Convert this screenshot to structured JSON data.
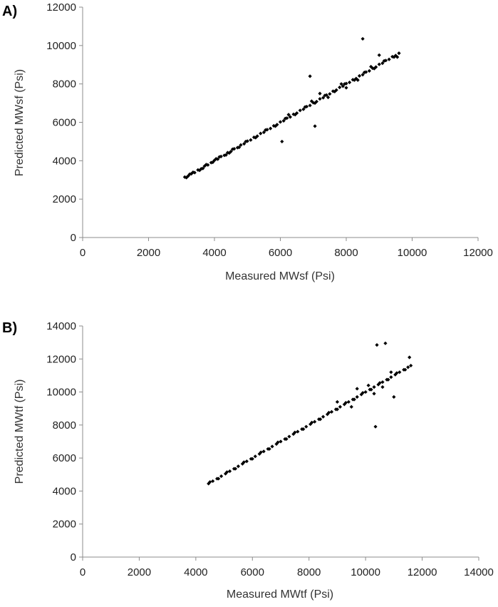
{
  "chart_data": [
    {
      "type": "scatter",
      "panel_label": "A)",
      "title": "",
      "xlabel": "Measured MWsf (Psi)",
      "ylabel": "Predicted MWsf (Psi)",
      "xlim": [
        0,
        12000
      ],
      "ylim": [
        0,
        12000
      ],
      "x_ticks": [
        0,
        2000,
        4000,
        6000,
        8000,
        10000,
        12000
      ],
      "y_ticks": [
        0,
        2000,
        4000,
        6000,
        8000,
        10000,
        12000
      ],
      "x_tick_labels": [
        "0",
        "2000",
        "4000",
        "6000",
        "8000",
        "10000",
        "12000"
      ],
      "y_tick_labels": [
        "0",
        "2000",
        "4000",
        "6000",
        "8000",
        "10000",
        "12000"
      ],
      "grid": false,
      "legend": "none",
      "marker_color": "#000000",
      "series": [
        {
          "x": [
            3100,
            3200,
            3300,
            3400,
            3500,
            3600,
            3700,
            3800,
            3900,
            4000,
            4100,
            4200,
            4300,
            4400,
            4500,
            4600,
            4700,
            4800,
            4900,
            5000,
            5100,
            5200,
            5300,
            5400,
            5500,
            5600,
            5700,
            5800,
            5900,
            6000,
            6100,
            6200,
            6300,
            6400,
            6500,
            6600,
            6700,
            6800,
            6900,
            7000,
            7100,
            7200,
            7300,
            7400,
            7500,
            7600,
            7700,
            7800,
            7900,
            8000,
            8100,
            8200,
            8300,
            8400,
            8500,
            8600,
            8700,
            8800,
            8900,
            9000,
            9100,
            9200,
            9300,
            9400,
            9500,
            9600,
            3150,
            3350,
            3550,
            3750,
            3950,
            4150,
            4350,
            4550,
            4750,
            4950,
            5250,
            5550,
            5850,
            6150,
            6450,
            6750,
            7050,
            7350,
            7650,
            7950,
            8250,
            8550,
            8850,
            9150,
            9450,
            6900,
            7050,
            6050,
            8500,
            7200,
            8000,
            9000,
            9550,
            3250,
            3650,
            4050,
            4450,
            6250,
            6950,
            7450,
            7850,
            8350,
            8750
          ],
          "y": [
            3150,
            3200,
            3320,
            3380,
            3520,
            3580,
            3720,
            3780,
            3900,
            4020,
            4080,
            4220,
            4280,
            4420,
            4480,
            4620,
            4680,
            4820,
            4880,
            5020,
            5080,
            5220,
            5280,
            5420,
            5480,
            5620,
            5680,
            5820,
            5880,
            6020,
            6080,
            6220,
            6280,
            6420,
            6480,
            6620,
            6680,
            6820,
            6880,
            7020,
            7080,
            7220,
            7280,
            7420,
            7480,
            7620,
            7680,
            7820,
            7880,
            8020,
            8080,
            8220,
            8280,
            8420,
            8480,
            8620,
            8680,
            8820,
            8880,
            9020,
            9080,
            9220,
            9280,
            9420,
            9480,
            9600,
            3120,
            3400,
            3500,
            3800,
            3920,
            4200,
            4300,
            4600,
            4700,
            5000,
            5200,
            5600,
            5800,
            6200,
            6400,
            6800,
            7000,
            7400,
            7600,
            8000,
            8200,
            8600,
            8800,
            9200,
            9400,
            8400,
            5800,
            5000,
            10350,
            7500,
            7800,
            9500,
            9400,
            3300,
            3600,
            4100,
            4400,
            6400,
            7100,
            7300,
            8000,
            8200,
            8900
          ]
        }
      ]
    },
    {
      "type": "scatter",
      "panel_label": "B)",
      "title": "",
      "xlabel": "Measured MWtf (Psi)",
      "ylabel": "Predicted MWtf (Psi)",
      "xlim": [
        0,
        14000
      ],
      "ylim": [
        0,
        14000
      ],
      "x_ticks": [
        0,
        2000,
        4000,
        6000,
        8000,
        10000,
        12000,
        14000
      ],
      "y_ticks": [
        0,
        2000,
        4000,
        6000,
        8000,
        10000,
        12000,
        14000
      ],
      "x_tick_labels": [
        "0",
        "2000",
        "4000",
        "6000",
        "8000",
        "10000",
        "12000",
        "14000"
      ],
      "y_tick_labels": [
        "0",
        "2000",
        "4000",
        "6000",
        "8000",
        "10000",
        "12000",
        "14000"
      ],
      "grid": false,
      "legend": "none",
      "marker_color": "#000000",
      "series": [
        {
          "x": [
            4450,
            4600,
            4750,
            4900,
            5050,
            5200,
            5350,
            5500,
            5650,
            5800,
            5950,
            6100,
            6250,
            6400,
            6550,
            6700,
            6850,
            7000,
            7150,
            7300,
            7450,
            7600,
            7750,
            7900,
            8050,
            8200,
            8350,
            8500,
            8650,
            8800,
            8950,
            9100,
            9250,
            9400,
            9550,
            9700,
            9850,
            10000,
            10150,
            10300,
            10450,
            10600,
            10750,
            10900,
            11050,
            11200,
            11350,
            11500,
            11600,
            4500,
            4800,
            5100,
            5400,
            5700,
            6000,
            6300,
            6600,
            6900,
            7200,
            7500,
            7800,
            8100,
            8400,
            8700,
            9000,
            9300,
            9600,
            9900,
            10200,
            10500,
            10800,
            11100,
            11400,
            10400,
            10700,
            10350,
            11000,
            11550,
            9500,
            10100,
            9000,
            9700,
            10300,
            10600,
            10900
          ],
          "y": [
            4450,
            4600,
            4750,
            4900,
            5050,
            5200,
            5350,
            5500,
            5650,
            5800,
            5950,
            6100,
            6250,
            6400,
            6550,
            6700,
            6850,
            7000,
            7150,
            7300,
            7450,
            7600,
            7750,
            7900,
            8050,
            8200,
            8350,
            8500,
            8650,
            8800,
            8950,
            9100,
            9250,
            9400,
            9550,
            9700,
            9850,
            10000,
            10150,
            10300,
            10450,
            10600,
            10750,
            10900,
            11050,
            11200,
            11350,
            11500,
            11600,
            4550,
            4750,
            5150,
            5350,
            5750,
            5950,
            6350,
            6550,
            6950,
            7150,
            7550,
            7750,
            8150,
            8350,
            8750,
            8950,
            9350,
            9550,
            9950,
            10150,
            10550,
            10750,
            11150,
            11350,
            12850,
            12950,
            7900,
            9700,
            12100,
            9100,
            10400,
            9400,
            10200,
            9900,
            10300,
            11200
          ]
        }
      ]
    }
  ]
}
